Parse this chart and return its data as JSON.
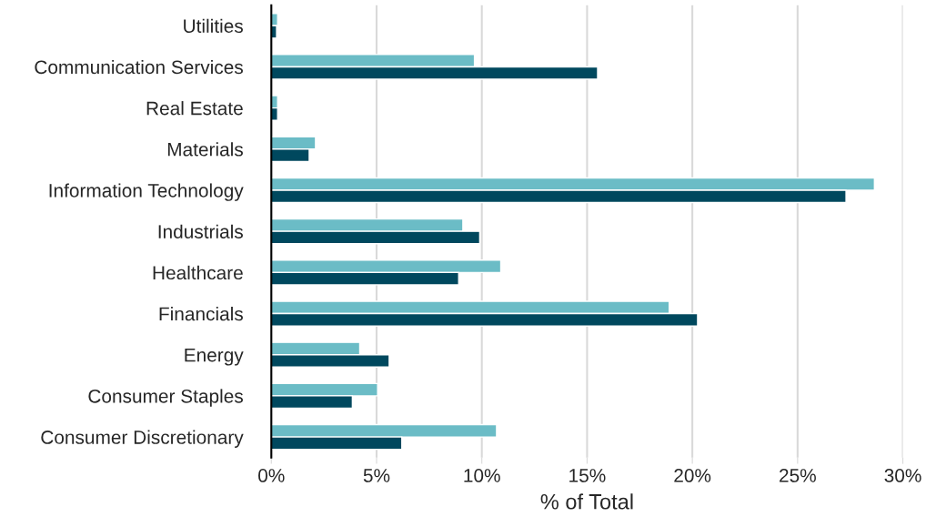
{
  "chart_data": {
    "type": "bar",
    "orientation": "horizontal",
    "xlabel": "% of Total",
    "categories": [
      "Utilities",
      "Communication Services",
      "Real Estate",
      "Materials",
      "Information Technology",
      "Industrials",
      "Healthcare",
      "Financials",
      "Energy",
      "Consumer Staples",
      "Consumer Discretionary"
    ],
    "series": [
      {
        "color": "#6bbcc6",
        "values": [
          0.3,
          9.65,
          0.3,
          2.1,
          28.65,
          9.1,
          10.9,
          18.9,
          4.2,
          5.05,
          10.7
        ]
      },
      {
        "color": "#00485e",
        "values": [
          0.25,
          15.5,
          0.3,
          1.8,
          27.3,
          9.9,
          8.9,
          20.25,
          5.6,
          3.85,
          6.2
        ]
      }
    ],
    "xlim": [
      0,
      30
    ],
    "xticks": [
      {
        "value": 0,
        "label": "0%"
      },
      {
        "value": 5,
        "label": "5%"
      },
      {
        "value": 10,
        "label": "10%"
      },
      {
        "value": 15,
        "label": "15%"
      },
      {
        "value": 20,
        "label": "20%"
      },
      {
        "value": 25,
        "label": "25%"
      },
      {
        "value": 30,
        "label": "30%"
      }
    ],
    "grid": "x"
  }
}
